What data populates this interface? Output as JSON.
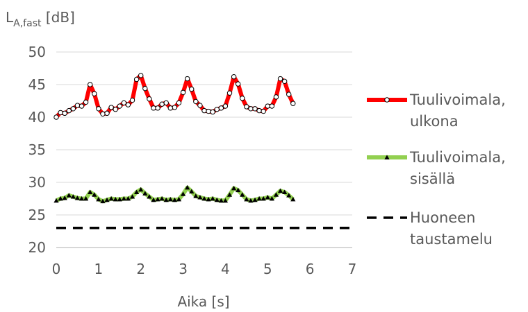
{
  "chart_data": {
    "type": "line",
    "ylabel_main": "L",
    "ylabel_sub": "A,fast",
    "ylabel_unit": " [dB]",
    "xlabel": "Aika [s]",
    "xlim": [
      0,
      7
    ],
    "ylim": [
      20,
      50
    ],
    "xticks": [
      0,
      1,
      2,
      3,
      4,
      5,
      6,
      7
    ],
    "yticks": [
      20,
      25,
      30,
      35,
      40,
      45,
      50
    ],
    "grid": "horizontal",
    "legend_position": "right",
    "series": [
      {
        "id": "outdoor",
        "legend_lines": [
          "Tuulivoimala,",
          "ulkona"
        ],
        "color": "#ff0000",
        "marker": "circle",
        "step": 0.1,
        "values": [
          40.0,
          40.7,
          40.6,
          41.0,
          41.3,
          41.8,
          41.7,
          42.3,
          45.0,
          43.6,
          41.3,
          40.5,
          40.6,
          41.5,
          41.2,
          41.7,
          42.2,
          41.9,
          42.6,
          45.8,
          46.4,
          44.4,
          42.8,
          41.4,
          41.4,
          42.0,
          42.2,
          41.4,
          41.5,
          42.2,
          43.8,
          45.9,
          44.3,
          42.4,
          41.8,
          41.0,
          40.9,
          40.8,
          41.2,
          41.4,
          41.7,
          43.7,
          46.2,
          45.1,
          42.9,
          41.6,
          41.3,
          41.3,
          41.0,
          40.9,
          41.7,
          41.7,
          43.1,
          45.9,
          45.5,
          43.5,
          42.1
        ]
      },
      {
        "id": "indoor",
        "legend_lines": [
          "Tuulivoimala,",
          "sisällä"
        ],
        "color": "#92d050",
        "marker": "triangle",
        "step": 0.1,
        "values": [
          27.2,
          27.5,
          27.6,
          28.0,
          27.8,
          27.6,
          27.5,
          27.5,
          28.5,
          28.1,
          27.4,
          27.1,
          27.3,
          27.5,
          27.4,
          27.4,
          27.5,
          27.5,
          27.8,
          28.5,
          28.9,
          28.3,
          27.8,
          27.3,
          27.4,
          27.5,
          27.3,
          27.4,
          27.3,
          27.4,
          28.2,
          29.2,
          28.6,
          27.9,
          27.7,
          27.5,
          27.4,
          27.5,
          27.3,
          27.2,
          27.2,
          28.1,
          29.1,
          28.8,
          28.1,
          27.4,
          27.2,
          27.3,
          27.5,
          27.5,
          27.7,
          27.5,
          28.1,
          28.7,
          28.5,
          28.0,
          27.4
        ]
      },
      {
        "id": "background",
        "legend_lines": [
          "Huoneen",
          "taustamelu"
        ],
        "color": "#000000",
        "marker": "none",
        "dashed": true,
        "x": [
          0,
          7
        ],
        "values": [
          23,
          23
        ]
      }
    ]
  }
}
